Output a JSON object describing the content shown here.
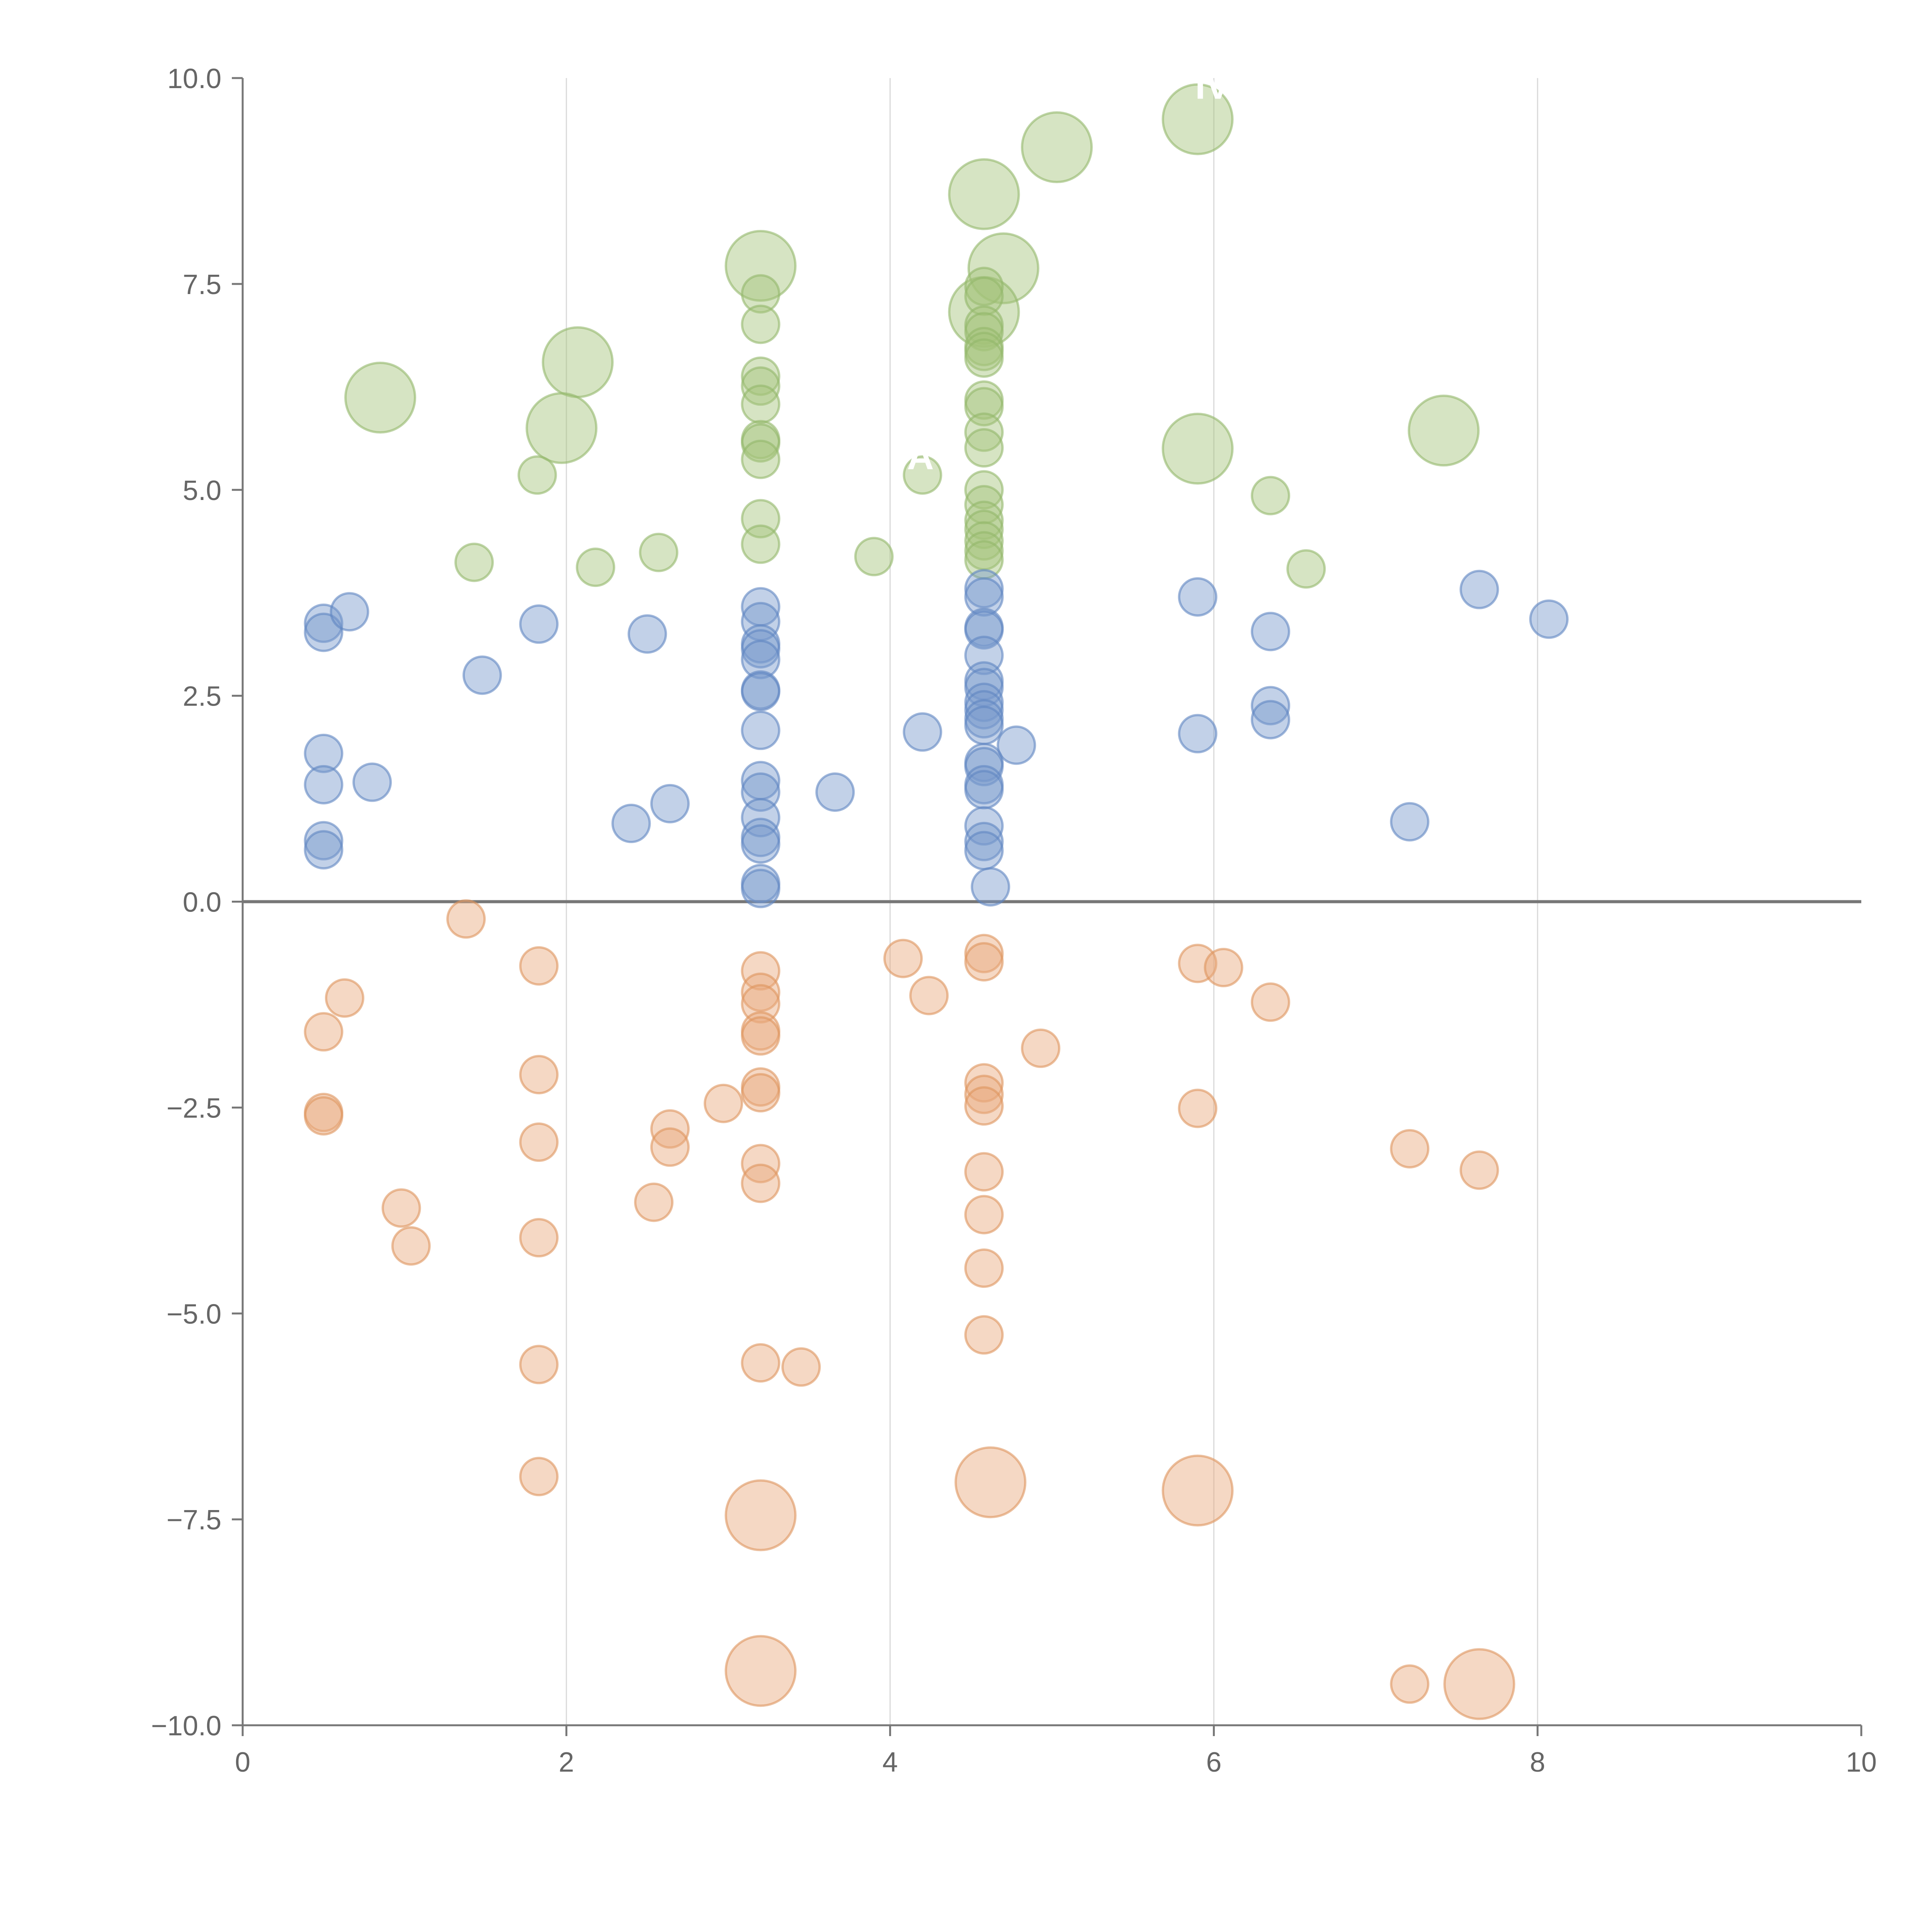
{
  "chart_data": {
    "type": "scatter",
    "subtype": "bubble",
    "title": "",
    "xlabel": "",
    "ylabel": "",
    "xlim": [
      0,
      10
    ],
    "ylim": [
      -10,
      10
    ],
    "x_ticks": [
      0,
      2,
      4,
      6,
      8,
      10
    ],
    "x_tick_labels": [
      "0",
      "2",
      "4",
      "6",
      "8",
      "10"
    ],
    "y_ticks": [
      10,
      7.5,
      5,
      2.5,
      0,
      -2.5,
      -5,
      -7.5,
      -10
    ],
    "y_tick_labels": [
      "10.0",
      "7.5",
      "5.0",
      "2.5",
      "0.0",
      "−2.5",
      "−5.0",
      "−7.5",
      "−10.0"
    ],
    "grid": "vertical",
    "zero_line": true,
    "annotations": [
      {
        "text": "IV",
        "x": 5.98,
        "y": 9.75
      },
      {
        "text": "A",
        "x": 4.2,
        "y": 5.25
      }
    ],
    "series": [
      {
        "name": "green",
        "color": "#a3c47a",
        "stroke": "#93b86a",
        "points": [
          {
            "x": 0.85,
            "y": 6.12,
            "s": 3
          },
          {
            "x": 2.07,
            "y": 6.55,
            "s": 3
          },
          {
            "x": 1.97,
            "y": 5.75,
            "s": 3
          },
          {
            "x": 1.82,
            "y": 5.18,
            "s": 1
          },
          {
            "x": 1.43,
            "y": 4.12,
            "s": 1
          },
          {
            "x": 2.18,
            "y": 4.06,
            "s": 1
          },
          {
            "x": 2.57,
            "y": 4.24,
            "s": 1
          },
          {
            "x": 3.2,
            "y": 7.72,
            "s": 3
          },
          {
            "x": 3.2,
            "y": 7.38,
            "s": 1
          },
          {
            "x": 3.2,
            "y": 7.01,
            "s": 1
          },
          {
            "x": 3.2,
            "y": 6.38,
            "s": 1
          },
          {
            "x": 3.2,
            "y": 6.26,
            "s": 1
          },
          {
            "x": 3.2,
            "y": 6.04,
            "s": 1
          },
          {
            "x": 3.2,
            "y": 5.61,
            "s": 1
          },
          {
            "x": 3.2,
            "y": 5.57,
            "s": 1
          },
          {
            "x": 3.2,
            "y": 5.37,
            "s": 1
          },
          {
            "x": 3.2,
            "y": 4.65,
            "s": 1
          },
          {
            "x": 3.2,
            "y": 4.34,
            "s": 1
          },
          {
            "x": 3.9,
            "y": 4.19,
            "s": 1
          },
          {
            "x": 4.2,
            "y": 5.18,
            "s": 1
          },
          {
            "x": 4.58,
            "y": 8.59,
            "s": 3
          },
          {
            "x": 4.7,
            "y": 7.69,
            "s": 3
          },
          {
            "x": 4.58,
            "y": 7.16,
            "s": 3
          },
          {
            "x": 4.58,
            "y": 7.47,
            "s": 1
          },
          {
            "x": 4.58,
            "y": 7.35,
            "s": 1
          },
          {
            "x": 4.58,
            "y": 7.0,
            "s": 1
          },
          {
            "x": 4.58,
            "y": 6.92,
            "s": 1
          },
          {
            "x": 4.58,
            "y": 6.74,
            "s": 1
          },
          {
            "x": 4.58,
            "y": 6.68,
            "s": 1
          },
          {
            "x": 4.58,
            "y": 6.6,
            "s": 1
          },
          {
            "x": 4.58,
            "y": 6.09,
            "s": 1
          },
          {
            "x": 4.58,
            "y": 6.01,
            "s": 1
          },
          {
            "x": 4.58,
            "y": 5.7,
            "s": 1
          },
          {
            "x": 4.58,
            "y": 5.51,
            "s": 1
          },
          {
            "x": 4.58,
            "y": 5.0,
            "s": 1
          },
          {
            "x": 4.58,
            "y": 4.82,
            "s": 1
          },
          {
            "x": 4.58,
            "y": 4.63,
            "s": 1
          },
          {
            "x": 4.58,
            "y": 4.52,
            "s": 1
          },
          {
            "x": 4.58,
            "y": 4.38,
            "s": 1
          },
          {
            "x": 4.58,
            "y": 4.26,
            "s": 1
          },
          {
            "x": 4.58,
            "y": 4.15,
            "s": 1
          },
          {
            "x": 5.03,
            "y": 9.16,
            "s": 3
          },
          {
            "x": 5.9,
            "y": 9.5,
            "s": 3
          },
          {
            "x": 5.9,
            "y": 5.5,
            "s": 3
          },
          {
            "x": 6.35,
            "y": 4.93,
            "s": 1
          },
          {
            "x": 6.57,
            "y": 4.04,
            "s": 1
          },
          {
            "x": 7.42,
            "y": 5.72,
            "s": 3
          }
        ]
      },
      {
        "name": "blue",
        "color": "#7899cc",
        "stroke": "#5f86c2",
        "points": [
          {
            "x": 0.5,
            "y": 3.38,
            "s": 1
          },
          {
            "x": 0.5,
            "y": 3.27,
            "s": 1
          },
          {
            "x": 0.66,
            "y": 3.52,
            "s": 1
          },
          {
            "x": 1.48,
            "y": 2.75,
            "s": 1
          },
          {
            "x": 1.83,
            "y": 3.37,
            "s": 1
          },
          {
            "x": 2.5,
            "y": 3.25,
            "s": 1
          },
          {
            "x": 0.5,
            "y": 1.8,
            "s": 1
          },
          {
            "x": 0.5,
            "y": 1.42,
            "s": 1
          },
          {
            "x": 0.8,
            "y": 1.45,
            "s": 1
          },
          {
            "x": 0.5,
            "y": 0.74,
            "s": 1
          },
          {
            "x": 0.5,
            "y": 0.63,
            "s": 1
          },
          {
            "x": 2.4,
            "y": 0.95,
            "s": 1
          },
          {
            "x": 2.64,
            "y": 1.19,
            "s": 1
          },
          {
            "x": 3.2,
            "y": 3.58,
            "s": 1
          },
          {
            "x": 3.2,
            "y": 3.4,
            "s": 1
          },
          {
            "x": 3.2,
            "y": 3.13,
            "s": 1
          },
          {
            "x": 3.2,
            "y": 3.07,
            "s": 1
          },
          {
            "x": 3.2,
            "y": 2.94,
            "s": 1
          },
          {
            "x": 3.2,
            "y": 2.57,
            "s": 1
          },
          {
            "x": 3.2,
            "y": 2.55,
            "s": 1
          },
          {
            "x": 3.2,
            "y": 2.08,
            "s": 1
          },
          {
            "x": 3.2,
            "y": 1.47,
            "s": 1
          },
          {
            "x": 3.2,
            "y": 1.33,
            "s": 1
          },
          {
            "x": 3.2,
            "y": 1.02,
            "s": 1
          },
          {
            "x": 3.2,
            "y": 0.78,
            "s": 1
          },
          {
            "x": 3.2,
            "y": 0.7,
            "s": 1
          },
          {
            "x": 3.2,
            "y": 0.22,
            "s": 1
          },
          {
            "x": 3.2,
            "y": 0.16,
            "s": 1
          },
          {
            "x": 3.66,
            "y": 1.33,
            "s": 1
          },
          {
            "x": 4.2,
            "y": 2.06,
            "s": 1
          },
          {
            "x": 4.58,
            "y": 3.8,
            "s": 1
          },
          {
            "x": 4.58,
            "y": 3.7,
            "s": 1
          },
          {
            "x": 4.58,
            "y": 3.33,
            "s": 1
          },
          {
            "x": 4.58,
            "y": 3.3,
            "s": 1
          },
          {
            "x": 4.58,
            "y": 2.99,
            "s": 1
          },
          {
            "x": 4.58,
            "y": 2.68,
            "s": 1
          },
          {
            "x": 4.58,
            "y": 2.6,
            "s": 1
          },
          {
            "x": 4.58,
            "y": 2.42,
            "s": 1
          },
          {
            "x": 4.58,
            "y": 2.33,
            "s": 1
          },
          {
            "x": 4.58,
            "y": 2.22,
            "s": 1
          },
          {
            "x": 4.58,
            "y": 2.14,
            "s": 1
          },
          {
            "x": 4.58,
            "y": 1.69,
            "s": 1
          },
          {
            "x": 4.58,
            "y": 1.64,
            "s": 1
          },
          {
            "x": 4.58,
            "y": 1.42,
            "s": 1
          },
          {
            "x": 4.58,
            "y": 1.36,
            "s": 1
          },
          {
            "x": 4.58,
            "y": 0.92,
            "s": 1
          },
          {
            "x": 4.58,
            "y": 0.73,
            "s": 1
          },
          {
            "x": 4.58,
            "y": 0.62,
            "s": 1
          },
          {
            "x": 4.62,
            "y": 0.18,
            "s": 1
          },
          {
            "x": 4.78,
            "y": 1.9,
            "s": 1
          },
          {
            "x": 5.9,
            "y": 3.7,
            "s": 1
          },
          {
            "x": 5.9,
            "y": 2.04,
            "s": 1
          },
          {
            "x": 6.35,
            "y": 3.28,
            "s": 1
          },
          {
            "x": 6.35,
            "y": 2.38,
            "s": 1
          },
          {
            "x": 6.35,
            "y": 2.21,
            "s": 1
          },
          {
            "x": 7.21,
            "y": 0.97,
            "s": 1
          },
          {
            "x": 7.64,
            "y": 3.79,
            "s": 1
          },
          {
            "x": 8.07,
            "y": 3.43,
            "s": 1
          }
        ]
      },
      {
        "name": "orange",
        "color": "#e8a87c",
        "stroke": "#dd955e",
        "points": [
          {
            "x": 1.38,
            "y": -0.21,
            "s": 1
          },
          {
            "x": 1.83,
            "y": -0.78,
            "s": 1
          },
          {
            "x": 0.63,
            "y": -1.17,
            "s": 1
          },
          {
            "x": 0.5,
            "y": -1.58,
            "s": 1
          },
          {
            "x": 1.83,
            "y": -2.1,
            "s": 1
          },
          {
            "x": 0.5,
            "y": -2.56,
            "s": 1
          },
          {
            "x": 0.5,
            "y": -2.6,
            "s": 1
          },
          {
            "x": 1.83,
            "y": -2.92,
            "s": 1
          },
          {
            "x": 0.98,
            "y": -3.72,
            "s": 1
          },
          {
            "x": 1.04,
            "y": -4.18,
            "s": 1
          },
          {
            "x": 1.83,
            "y": -4.08,
            "s": 1
          },
          {
            "x": 1.83,
            "y": -5.62,
            "s": 1
          },
          {
            "x": 1.83,
            "y": -6.98,
            "s": 1
          },
          {
            "x": 2.64,
            "y": -2.76,
            "s": 1
          },
          {
            "x": 2.64,
            "y": -2.98,
            "s": 1
          },
          {
            "x": 2.97,
            "y": -2.45,
            "s": 1
          },
          {
            "x": 2.54,
            "y": -3.65,
            "s": 1
          },
          {
            "x": 3.2,
            "y": -0.84,
            "s": 1
          },
          {
            "x": 3.2,
            "y": -1.1,
            "s": 1
          },
          {
            "x": 3.2,
            "y": -1.24,
            "s": 1
          },
          {
            "x": 3.2,
            "y": -1.57,
            "s": 1
          },
          {
            "x": 3.2,
            "y": -1.63,
            "s": 1
          },
          {
            "x": 3.2,
            "y": -2.25,
            "s": 1
          },
          {
            "x": 3.2,
            "y": -2.32,
            "s": 1
          },
          {
            "x": 3.2,
            "y": -3.18,
            "s": 1
          },
          {
            "x": 3.2,
            "y": -3.42,
            "s": 1
          },
          {
            "x": 3.2,
            "y": -5.6,
            "s": 1
          },
          {
            "x": 3.45,
            "y": -5.65,
            "s": 1
          },
          {
            "x": 3.2,
            "y": -7.45,
            "s": 3
          },
          {
            "x": 3.2,
            "y": -9.34,
            "s": 3
          },
          {
            "x": 4.08,
            "y": -0.69,
            "s": 1
          },
          {
            "x": 4.24,
            "y": -1.14,
            "s": 1
          },
          {
            "x": 4.58,
            "y": -0.63,
            "s": 1
          },
          {
            "x": 4.58,
            "y": -0.73,
            "s": 1
          },
          {
            "x": 4.58,
            "y": -2.2,
            "s": 1
          },
          {
            "x": 4.58,
            "y": -2.34,
            "s": 1
          },
          {
            "x": 4.58,
            "y": -2.48,
            "s": 1
          },
          {
            "x": 4.58,
            "y": -3.28,
            "s": 1
          },
          {
            "x": 4.58,
            "y": -3.8,
            "s": 1
          },
          {
            "x": 4.58,
            "y": -4.45,
            "s": 1
          },
          {
            "x": 4.58,
            "y": -5.26,
            "s": 1
          },
          {
            "x": 4.62,
            "y": -7.05,
            "s": 3
          },
          {
            "x": 4.93,
            "y": -1.78,
            "s": 1
          },
          {
            "x": 5.9,
            "y": -0.75,
            "s": 1
          },
          {
            "x": 6.06,
            "y": -0.8,
            "s": 1
          },
          {
            "x": 5.9,
            "y": -2.51,
            "s": 1
          },
          {
            "x": 5.9,
            "y": -7.15,
            "s": 3
          },
          {
            "x": 6.35,
            "y": -1.22,
            "s": 1
          },
          {
            "x": 7.21,
            "y": -3.0,
            "s": 1
          },
          {
            "x": 7.64,
            "y": -3.26,
            "s": 1
          },
          {
            "x": 7.21,
            "y": -9.5,
            "s": 1
          },
          {
            "x": 7.64,
            "y": -9.5,
            "s": 3
          }
        ]
      }
    ]
  }
}
